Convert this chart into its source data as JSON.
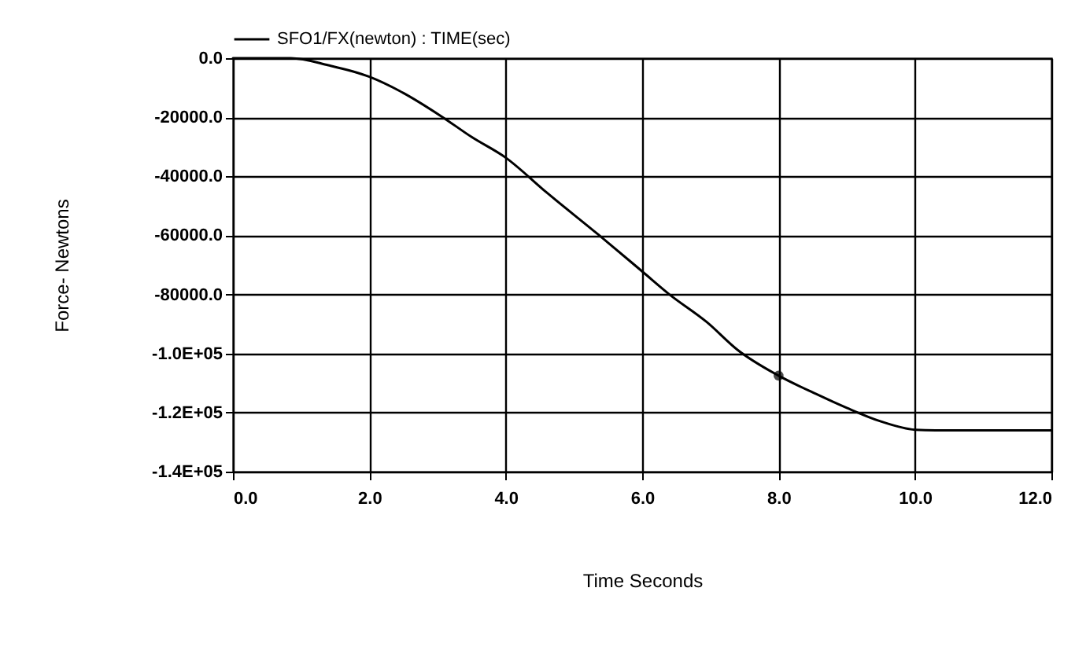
{
  "chart_data": {
    "type": "line",
    "xlabel": "Time Seconds",
    "ylabel": "Force- Newtons",
    "series": [
      {
        "name": "SFO1/FX(newton) : TIME(sec)",
        "color": "#000000",
        "x": [
          0,
          0.5,
          0.85,
          1.4,
          2,
          2.5,
          3.05,
          3.5,
          4,
          4.6,
          5.35,
          6,
          6.4,
          6.95,
          7.4,
          8,
          8.55,
          9,
          9.5,
          10,
          10.3,
          11,
          12
        ],
        "values": [
          0,
          0,
          0,
          -2400,
          -6300,
          -11800,
          -19600,
          -26700,
          -33700,
          -45500,
          -59600,
          -72200,
          -80000,
          -89400,
          -98800,
          -107500,
          -113700,
          -118400,
          -123000,
          -125800,
          -126000,
          -126000,
          -126000
        ]
      },
      {
        "type": "scatter",
        "color": "#000000",
        "marker": "circle",
        "x": [
          8
        ],
        "values": [
          -107500
        ]
      }
    ],
    "xlim": [
      0,
      12
    ],
    "xticks": [
      {
        "value": 0,
        "label": "0.0"
      },
      {
        "value": 2,
        "label": "2.0"
      },
      {
        "value": 4,
        "label": "4.0"
      },
      {
        "value": 6,
        "label": "6.0"
      },
      {
        "value": 8,
        "label": "8.0"
      },
      {
        "value": 10,
        "label": "10.0"
      },
      {
        "value": 12,
        "label": "12.0"
      }
    ],
    "ylim": [
      -140000,
      0
    ],
    "yticks": [
      {
        "value": 0,
        "label": "0.0"
      },
      {
        "value": -20000,
        "label": "-20000.0"
      },
      {
        "value": -40000,
        "label": "-40000.0"
      },
      {
        "value": -60000,
        "label": "-60000.0"
      },
      {
        "value": -80000,
        "label": "-80000.0"
      },
      {
        "value": -100000,
        "label": "-1.0E+05"
      },
      {
        "value": -120000,
        "label": "-1.2E+05"
      },
      {
        "value": -140000,
        "label": "-1.4E+05"
      }
    ],
    "grid": true,
    "legend": "top"
  }
}
